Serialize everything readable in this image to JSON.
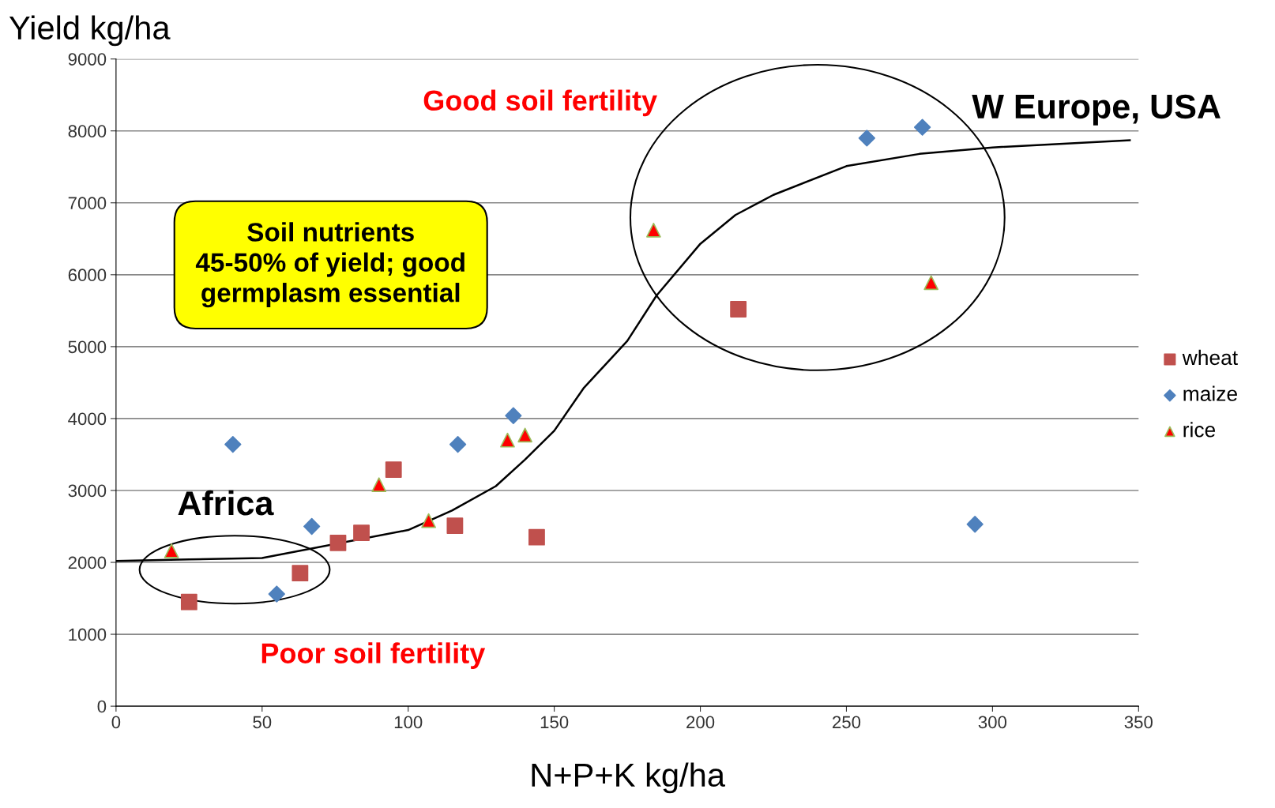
{
  "chart_data": {
    "type": "scatter",
    "xlabel": "N+P+K kg/ha",
    "ylabel": "Yield kg/ha",
    "xlim": [
      0,
      350
    ],
    "xticks": [
      0,
      50,
      100,
      150,
      200,
      250,
      300,
      350
    ],
    "ylim": [
      0,
      9000
    ],
    "yticks": [
      0,
      1000,
      2000,
      3000,
      4000,
      5000,
      6000,
      7000,
      8000,
      9000
    ],
    "grid": "y",
    "legend": "right",
    "series": [
      {
        "name": "wheat",
        "color": "#c0504d",
        "marker": "square",
        "x": [
          25,
          63,
          76,
          84,
          95,
          116,
          144,
          213
        ],
        "values": [
          1450,
          1850,
          2270,
          2410,
          3290,
          2510,
          2350,
          5520
        ]
      },
      {
        "name": "maize",
        "color": "#4f81bd",
        "marker": "diamond",
        "x": [
          40,
          55,
          67,
          117,
          136,
          257,
          276,
          294
        ],
        "values": [
          3640,
          1560,
          2500,
          3640,
          4040,
          7900,
          8050,
          2530
        ]
      },
      {
        "name": "rice",
        "color": "#ff0000",
        "marker": "triangle",
        "x": [
          19,
          90,
          107,
          134,
          140,
          184,
          279
        ],
        "values": [
          2160,
          3080,
          2580,
          3700,
          3770,
          6620,
          5890
        ]
      },
      {
        "type": "line",
        "color": "#000000",
        "marker": "none",
        "x": [
          0,
          25,
          50,
          100,
          115,
          130,
          140,
          150,
          160,
          175,
          185,
          200,
          212,
          225,
          250,
          275,
          300,
          347
        ],
        "values": [
          2020,
          2040,
          2060,
          2450,
          2720,
          3060,
          3430,
          3830,
          4420,
          5080,
          5710,
          6430,
          6830,
          7110,
          7510,
          7680,
          7770,
          7870
        ]
      }
    ],
    "annotations": [
      "Good soil fertility",
      "W Europe, USA",
      "Soil nutrients\n45-50% of yield; good\ngermplasm essential",
      "Africa",
      "Poor soil fertility"
    ]
  }
}
